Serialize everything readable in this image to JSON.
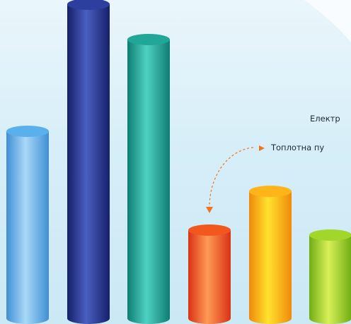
{
  "chart_data": {
    "type": "bar",
    "style": "3d-cylinder",
    "categories": [
      "",
      "",
      "",
      "",
      "",
      ""
    ],
    "values": [
      265,
      445,
      395,
      125,
      180,
      118
    ],
    "colors": [
      {
        "dark": "#3f8fd4",
        "light": "#a9d9f7",
        "top": "#5ab0ec"
      },
      {
        "dark": "#16206a",
        "light": "#4a5fc0",
        "top": "#2c3f9f"
      },
      {
        "dark": "#0e7d72",
        "light": "#4fd1c1",
        "top": "#21a797"
      },
      {
        "dark": "#d93214",
        "light": "#ff9a55",
        "top": "#f2581e"
      },
      {
        "dark": "#f08a0a",
        "light": "#ffe22e",
        "top": "#ffb51a"
      },
      {
        "dark": "#6fae12",
        "light": "#d8f05a",
        "top": "#a3d62a"
      }
    ],
    "title": "",
    "xlabel": "",
    "ylabel": "",
    "grid": false,
    "annotations": [
      {
        "text": "Електр"
      },
      {
        "text": "Топлотна пу"
      }
    ]
  }
}
